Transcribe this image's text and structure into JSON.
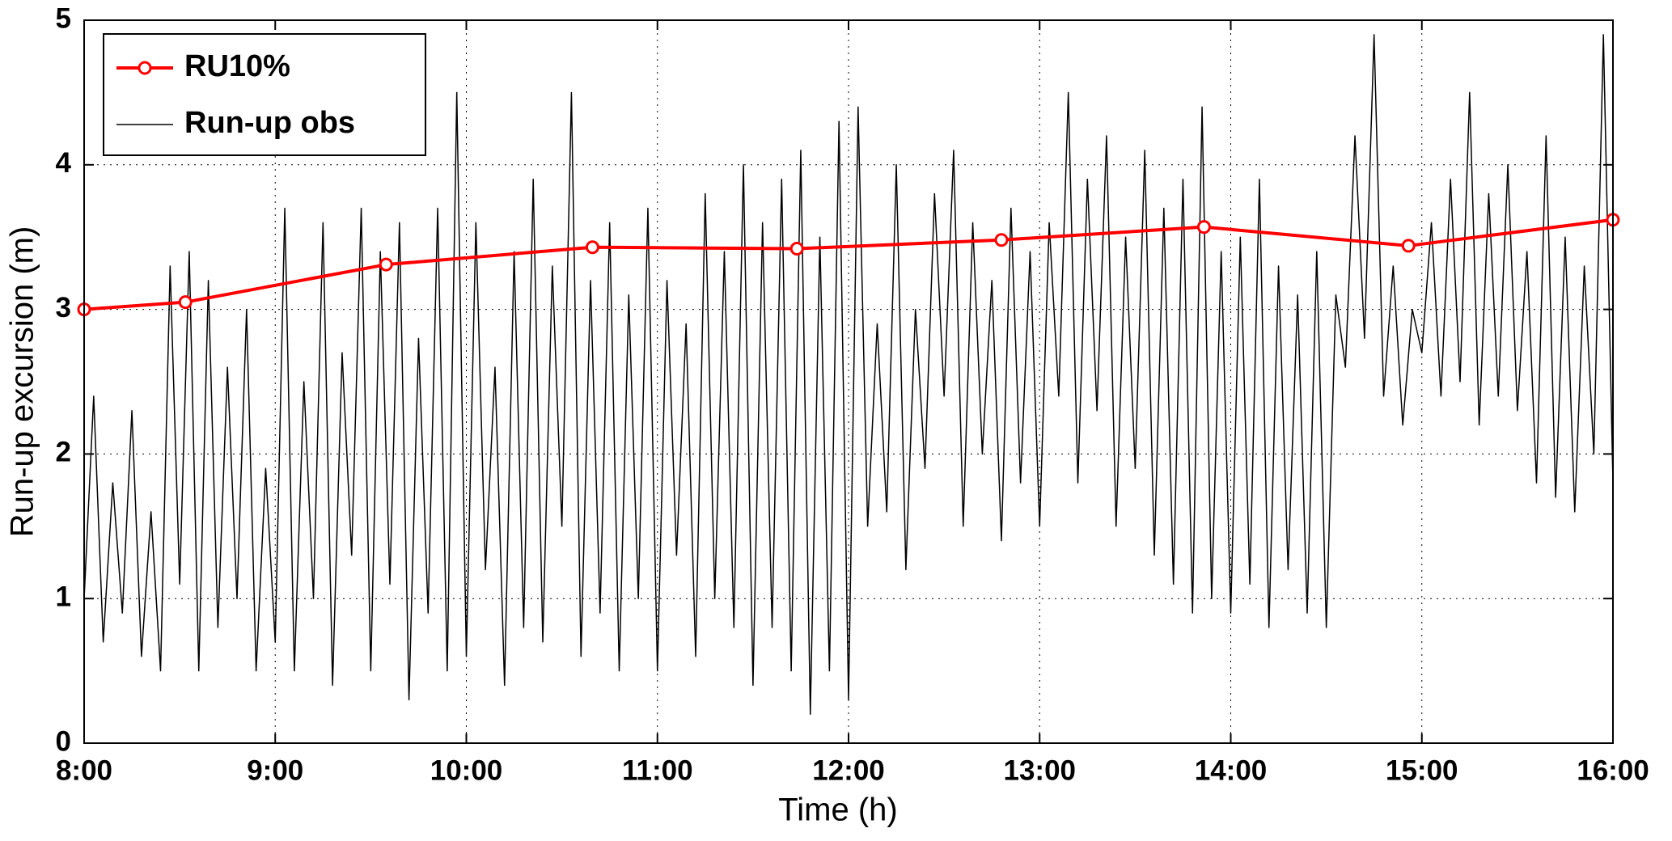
{
  "chart_data": {
    "type": "line",
    "xlabel": "Time (h)",
    "ylabel": "Run-up excursion (m)",
    "xlim": [
      8,
      16
    ],
    "ylim": [
      0,
      5
    ],
    "xticks": [
      {
        "value": 8,
        "label": "8:00"
      },
      {
        "value": 9,
        "label": "9:00"
      },
      {
        "value": 10,
        "label": "10:00"
      },
      {
        "value": 11,
        "label": "11:00"
      },
      {
        "value": 12,
        "label": "12:00"
      },
      {
        "value": 13,
        "label": "13:00"
      },
      {
        "value": 14,
        "label": "14:00"
      },
      {
        "value": 15,
        "label": "15:00"
      },
      {
        "value": 16,
        "label": "16:00"
      }
    ],
    "yticks": [
      0,
      1,
      2,
      3,
      4,
      5
    ],
    "grid": true,
    "legend": "upper left",
    "series": [
      {
        "name": "RU10%",
        "color": "#ff0000",
        "markers": true,
        "x": [
          8.0,
          8.53,
          9.58,
          10.66,
          11.73,
          12.8,
          13.86,
          14.93,
          16.0
        ],
        "values": [
          3.0,
          3.05,
          3.31,
          3.43,
          3.42,
          3.48,
          3.57,
          3.44,
          3.62
        ]
      },
      {
        "name": "Run-up obs",
        "color": "#000000",
        "markers": false,
        "x": [
          8.0,
          8.05,
          8.1,
          8.15,
          8.2,
          8.25,
          8.3,
          8.35,
          8.4,
          8.45,
          8.5,
          8.55,
          8.6,
          8.65,
          8.7,
          8.75,
          8.8,
          8.85,
          8.9,
          8.95,
          9.0,
          9.05,
          9.1,
          9.15,
          9.2,
          9.25,
          9.3,
          9.35,
          9.4,
          9.45,
          9.5,
          9.55,
          9.6,
          9.65,
          9.7,
          9.75,
          9.8,
          9.85,
          9.9,
          9.95,
          10.0,
          10.05,
          10.1,
          10.15,
          10.2,
          10.25,
          10.3,
          10.35,
          10.4,
          10.45,
          10.5,
          10.55,
          10.6,
          10.65,
          10.7,
          10.75,
          10.8,
          10.85,
          10.9,
          10.95,
          11.0,
          11.05,
          11.1,
          11.15,
          11.2,
          11.25,
          11.3,
          11.35,
          11.4,
          11.45,
          11.5,
          11.55,
          11.6,
          11.65,
          11.7,
          11.75,
          11.8,
          11.85,
          11.9,
          11.95,
          12.0,
          12.05,
          12.1,
          12.15,
          12.2,
          12.25,
          12.3,
          12.35,
          12.4,
          12.45,
          12.5,
          12.55,
          12.6,
          12.65,
          12.7,
          12.75,
          12.8,
          12.85,
          12.9,
          12.95,
          13.0,
          13.05,
          13.1,
          13.15,
          13.2,
          13.25,
          13.3,
          13.35,
          13.4,
          13.45,
          13.5,
          13.55,
          13.6,
          13.65,
          13.7,
          13.75,
          13.8,
          13.85,
          13.9,
          13.95,
          14.0,
          14.05,
          14.1,
          14.15,
          14.2,
          14.25,
          14.3,
          14.35,
          14.4,
          14.45,
          14.5,
          14.55,
          14.6,
          14.65,
          14.7,
          14.75,
          14.8,
          14.85,
          14.9,
          14.95,
          15.0,
          15.05,
          15.1,
          15.15,
          15.2,
          15.25,
          15.3,
          15.35,
          15.4,
          15.45,
          15.5,
          15.55,
          15.6,
          15.65,
          15.7,
          15.75,
          15.8,
          15.85,
          15.9,
          15.95,
          16.0
        ],
        "values": [
          1.0,
          2.4,
          0.7,
          1.8,
          0.9,
          2.3,
          0.6,
          1.6,
          0.5,
          3.3,
          1.1,
          3.4,
          0.5,
          3.2,
          0.8,
          2.6,
          1.0,
          3.0,
          0.5,
          1.9,
          0.7,
          3.7,
          0.5,
          2.5,
          1.0,
          3.6,
          0.4,
          2.7,
          1.3,
          3.7,
          0.5,
          3.4,
          1.1,
          3.6,
          0.3,
          2.8,
          0.9,
          3.7,
          0.5,
          4.5,
          0.6,
          3.6,
          1.2,
          2.6,
          0.4,
          3.4,
          0.8,
          3.9,
          0.7,
          3.3,
          1.5,
          4.5,
          0.6,
          3.2,
          0.9,
          3.6,
          0.5,
          3.1,
          1.0,
          3.7,
          0.5,
          3.2,
          1.3,
          2.9,
          0.6,
          3.8,
          1.0,
          3.4,
          0.8,
          4.0,
          0.4,
          3.6,
          0.8,
          3.9,
          0.5,
          4.1,
          0.2,
          3.5,
          0.5,
          4.3,
          0.3,
          4.4,
          1.5,
          2.9,
          1.6,
          4.0,
          1.2,
          3.0,
          1.9,
          3.8,
          2.4,
          4.1,
          1.5,
          3.6,
          2.0,
          3.2,
          1.4,
          3.7,
          1.8,
          3.4,
          1.5,
          3.6,
          2.4,
          4.5,
          1.8,
          3.9,
          2.3,
          4.2,
          1.5,
          3.5,
          1.9,
          4.1,
          1.3,
          3.7,
          1.1,
          3.9,
          0.9,
          4.4,
          1.0,
          3.4,
          0.9,
          3.5,
          1.1,
          3.9,
          0.8,
          3.3,
          1.2,
          3.1,
          0.9,
          3.4,
          0.8,
          3.1,
          2.6,
          4.2,
          2.8,
          4.9,
          2.4,
          3.3,
          2.2,
          3.0,
          2.7,
          3.6,
          2.4,
          3.9,
          2.5,
          4.5,
          2.2,
          3.8,
          2.4,
          4.0,
          2.3,
          3.4,
          1.8,
          4.2,
          1.7,
          3.5,
          1.6,
          3.3,
          2.0,
          4.9,
          1.8
        ]
      }
    ]
  }
}
